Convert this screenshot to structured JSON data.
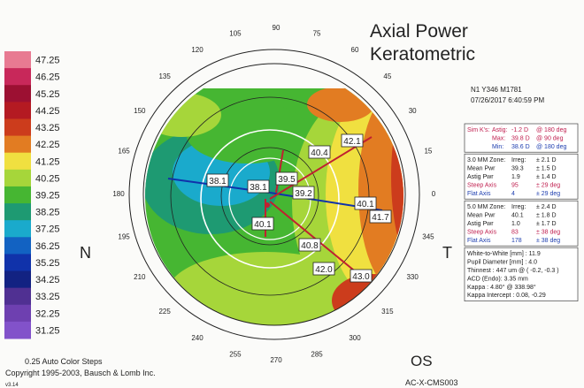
{
  "header": {
    "title": "Axial Power",
    "subtitle": "Keratometric",
    "patient_id": "N1 Y346 M1781",
    "timestamp": "07/26/2017 6:40:59 PM"
  },
  "color_scale": [
    {
      "label": "47.25",
      "color": "#e87a92"
    },
    {
      "label": "46.25",
      "color": "#c8285a"
    },
    {
      "label": "45.25",
      "color": "#9c1032"
    },
    {
      "label": "44.25",
      "color": "#b41a22"
    },
    {
      "label": "43.25",
      "color": "#cc3c1c"
    },
    {
      "label": "42.25",
      "color": "#e27c22"
    },
    {
      "label": "41.25",
      "color": "#f0e040"
    },
    {
      "label": "40.25",
      "color": "#a6d63a"
    },
    {
      "label": "39.25",
      "color": "#46b632"
    },
    {
      "label": "38.25",
      "color": "#1e9a72"
    },
    {
      "label": "37.25",
      "color": "#1aaacc"
    },
    {
      "label": "36.25",
      "color": "#1262c2"
    },
    {
      "label": "35.25",
      "color": "#1032aa"
    },
    {
      "label": "34.25",
      "color": "#122282"
    },
    {
      "label": "33.25",
      "color": "#503092"
    },
    {
      "label": "32.25",
      "color": "#6e40b0"
    },
    {
      "label": "31.25",
      "color": "#8252ca"
    }
  ],
  "angles": [
    "0",
    "15",
    "30",
    "45",
    "60",
    "75",
    "90",
    "105",
    "120",
    "135",
    "150",
    "165",
    "180",
    "195",
    "210",
    "225",
    "240",
    "255",
    "270",
    "285",
    "300",
    "315",
    "330",
    "345"
  ],
  "map_labels": [
    "42.1",
    "40.4",
    "38.1",
    "38.1",
    "39.5",
    "39.2",
    "40.1",
    "41.7",
    "40.1",
    "40.8",
    "42.0",
    "43.0"
  ],
  "side_labels": {
    "nasal": "N",
    "temporal": "T",
    "eye": "OS"
  },
  "panels": [
    {
      "rows": [
        [
          "Sim K's:",
          "Astig:",
          "-1.2 D",
          "@ 180 deg"
        ],
        [
          "",
          "Max:",
          "39.8 D",
          "@ 90 deg"
        ],
        [
          "",
          "Min:",
          "38.6 D",
          "@ 180 deg"
        ]
      ],
      "colors": [
        "#c02050",
        "#c02050",
        "#2040b0"
      ]
    },
    {
      "rows": [
        [
          "3.0 MM Zone:",
          "Irreg:",
          "± 2.1 D"
        ],
        [
          "Mean Pwr",
          "39.3",
          "± 1.5 D"
        ],
        [
          "Astig Pwr",
          "1.9",
          "± 1.4 D"
        ],
        [
          "Steep Axis",
          "95",
          "± 29 deg"
        ],
        [
          "Flat Axis",
          "4",
          "± 29 deg"
        ]
      ],
      "colors": [
        "#202020",
        "#202020",
        "#202020",
        "#c02050",
        "#2040b0"
      ]
    },
    {
      "rows": [
        [
          "5.0 MM Zone:",
          "Irreg:",
          "± 2.4 D"
        ],
        [
          "Mean Pwr",
          "40.1",
          "± 1.8 D"
        ],
        [
          "Astig Pwr",
          "1.0",
          "± 1.7 D"
        ],
        [
          "Steep Axis",
          "83",
          "± 38 deg"
        ],
        [
          "Flat Axis",
          "178",
          "± 38 deg"
        ]
      ],
      "colors": [
        "#202020",
        "#202020",
        "#202020",
        "#c02050",
        "#2040b0"
      ]
    },
    {
      "rows": [
        [
          "White-to-White [mm] : 11.9"
        ],
        [
          "Pupil Diameter [mm] : 4.0"
        ],
        [
          "Thinnest : 447 um @ ( -0.2, -0.3 )"
        ],
        [
          "ACD (Endo): 3.35 mm"
        ],
        [
          "Kappa : 4.80° @ 338.98°"
        ],
        [
          "Kappa Intercept : 0.08, -0.29"
        ]
      ],
      "colors": [
        "#202020",
        "#202020",
        "#202020",
        "#202020",
        "#202020",
        "#202020"
      ]
    }
  ],
  "footer": {
    "steps": "0.25 Auto Color Steps",
    "copyright": "Copyright 1995-2003, Bausch & Lomb Inc.",
    "version": "v3.14",
    "code": "AC-X-CMS003"
  }
}
